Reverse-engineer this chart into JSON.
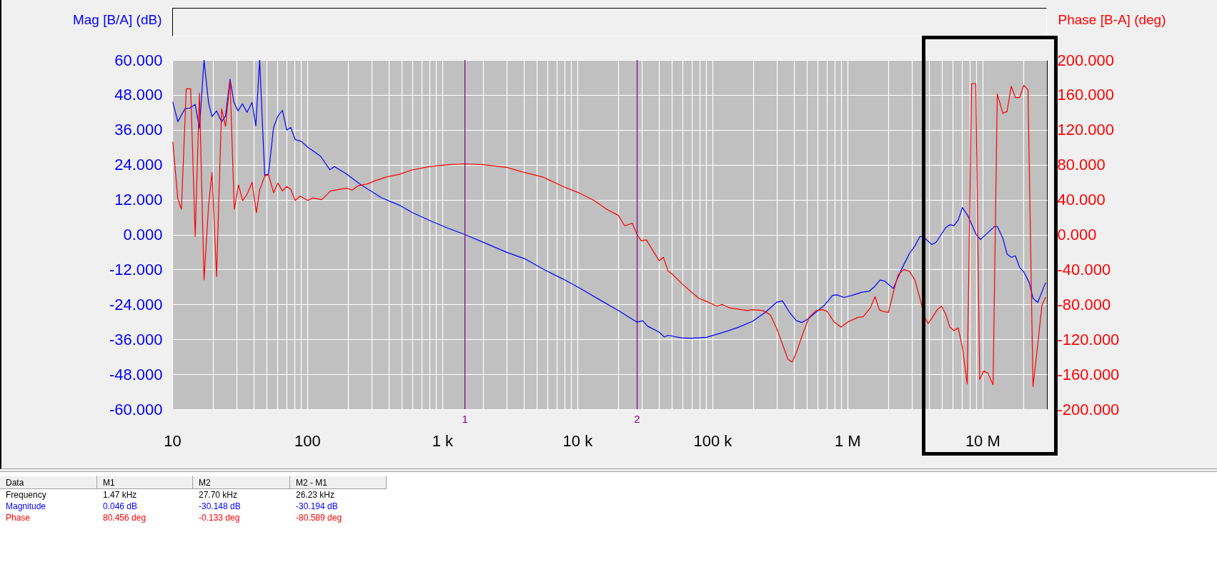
{
  "chart_data": {
    "type": "line",
    "ylabel": "Mag [B/A] (dB)",
    "y2label": "Phase [B-A] (deg)",
    "log": "x",
    "grid": true,
    "xlim": [
      10,
      30000000
    ],
    "xticks": [
      10,
      {
        "value": 20,
        "label": null
      },
      {
        "value": 30,
        "label": null
      },
      {
        "value": 40,
        "label": null
      },
      {
        "value": 50,
        "label": null
      },
      {
        "value": 60,
        "label": null
      },
      {
        "value": 70,
        "label": null
      },
      {
        "value": 80,
        "label": null
      },
      {
        "value": 90,
        "label": null
      },
      100,
      {
        "value": 200,
        "label": null
      },
      {
        "value": 300,
        "label": null
      },
      {
        "value": 400,
        "label": null
      },
      {
        "value": 500,
        "label": null
      },
      {
        "value": 600,
        "label": null
      },
      {
        "value": 700,
        "label": null
      },
      {
        "value": 800,
        "label": null
      },
      {
        "value": 900,
        "label": null
      },
      {
        "value": 1000,
        "label": "1 k"
      },
      {
        "value": 2000,
        "label": null
      },
      {
        "value": 3000,
        "label": null
      },
      {
        "value": 4000,
        "label": null
      },
      {
        "value": 5000,
        "label": null
      },
      {
        "value": 6000,
        "label": null
      },
      {
        "value": 7000,
        "label": null
      },
      {
        "value": 8000,
        "label": null
      },
      {
        "value": 9000,
        "label": null
      },
      {
        "value": 10000,
        "label": "10 k"
      },
      {
        "value": 20000,
        "label": null
      },
      {
        "value": 30000,
        "label": null
      },
      {
        "value": 40000,
        "label": null
      },
      {
        "value": 50000,
        "label": null
      },
      {
        "value": 60000,
        "label": null
      },
      {
        "value": 70000,
        "label": null
      },
      {
        "value": 80000,
        "label": null
      },
      {
        "value": 90000,
        "label": null
      },
      {
        "value": 100000,
        "label": "100 k"
      },
      {
        "value": 200000,
        "label": null
      },
      {
        "value": 300000,
        "label": null
      },
      {
        "value": 400000,
        "label": null
      },
      {
        "value": 500000,
        "label": null
      },
      {
        "value": 600000,
        "label": null
      },
      {
        "value": 700000,
        "label": null
      },
      {
        "value": 800000,
        "label": null
      },
      {
        "value": 900000,
        "label": null
      },
      {
        "value": 1000000,
        "label": "1 M"
      },
      {
        "value": 2000000,
        "label": null
      },
      {
        "value": 3000000,
        "label": null
      },
      {
        "value": 4000000,
        "label": null
      },
      {
        "value": 5000000,
        "label": null
      },
      {
        "value": 6000000,
        "label": null
      },
      {
        "value": 7000000,
        "label": null
      },
      {
        "value": 8000000,
        "label": null
      },
      {
        "value": 9000000,
        "label": null
      },
      {
        "value": 10000000,
        "label": "10 M"
      },
      {
        "value": 20000000,
        "label": null
      }
    ],
    "ylim": [
      -60,
      60
    ],
    "yticks": [
      {
        "value": -60,
        "label": "-60.000"
      },
      {
        "value": -48,
        "label": "-48.000"
      },
      {
        "value": -36,
        "label": "-36.000"
      },
      {
        "value": -24,
        "label": "-24.000"
      },
      {
        "value": -12,
        "label": "-12.000"
      },
      {
        "value": 0,
        "label": "0.000"
      },
      {
        "value": 12,
        "label": "12.000"
      },
      {
        "value": 24,
        "label": "24.000"
      },
      {
        "value": 36,
        "label": "36.000"
      },
      {
        "value": 48,
        "label": "48.000"
      },
      {
        "value": 60,
        "label": "60.000"
      }
    ],
    "y2lim": [
      -200,
      200
    ],
    "y2ticks": [
      {
        "value": -200,
        "label": "-200.000"
      },
      {
        "value": -160,
        "label": "-160.000"
      },
      {
        "value": -120,
        "label": "-120.000"
      },
      {
        "value": -80,
        "label": "-80.000"
      },
      {
        "value": -40,
        "label": "-40.000"
      },
      {
        "value": 0,
        "label": "0.000"
      },
      {
        "value": 40,
        "label": "40.000"
      },
      {
        "value": 80,
        "label": "80.000"
      },
      {
        "value": 120,
        "label": "120.000"
      },
      {
        "value": 160,
        "label": "160.000"
      },
      {
        "value": 200,
        "label": "200.000"
      }
    ],
    "series": [
      {
        "color": "#0000ff",
        "x": [
          10.1,
          11.0,
          12.4,
          13.5,
          14.8,
          15.9,
          17.2,
          18.6,
          19.7,
          21.3,
          23.2,
          24.8,
          26.8,
          28.6,
          30.7,
          33.1,
          35.8,
          39.0,
          41.6,
          44.4,
          48.4,
          51.6,
          56.3,
          60.6,
          65.5,
          70.5,
          75.5,
          81.3,
          90.5,
          101,
          125,
          147,
          159,
          193,
          250,
          353,
          480,
          597,
          811,
          1100,
          1470,
          2120,
          3000,
          4080,
          5540,
          7850,
          10700,
          14500,
          20500,
          24400,
          27700,
          30400,
          33200,
          40300,
          44000,
          47000,
          58500,
          69600,
          90500,
          118000,
          153000,
          198000,
          247000,
          300000,
          330000,
          372000,
          419000,
          461000,
          507000,
          584000,
          674000,
          777000,
          835000,
          940000,
          1084000,
          1281000,
          1443000,
          1587000,
          1745000,
          1874000,
          2183000,
          2493000,
          2875000,
          3162000,
          3445000,
          3648000,
          4207000,
          4519000,
          5338000,
          5732000,
          6155000,
          6611000,
          7100000,
          7807000,
          9006000,
          9672000,
          12270000,
          12870000,
          14150000,
          15200000,
          16330000,
          17530000,
          18830000,
          20220000,
          22240000,
          23660000,
          25660000,
          29310000
        ],
        "values": [
          45.5,
          38.8,
          43.2,
          43.5,
          44.7,
          36.5,
          60,
          45.1,
          40.6,
          42.5,
          38.8,
          40.7,
          53.4,
          45.5,
          42.5,
          44.9,
          42.0,
          45.4,
          37.4,
          60,
          20.4,
          20.8,
          36.8,
          40.7,
          42.7,
          35.9,
          36.8,
          32.7,
          32.0,
          30.0,
          27.0,
          22.3,
          23.4,
          21.0,
          17.1,
          12.7,
          10.1,
          7.6,
          4.8,
          2.2,
          0.0,
          -3.1,
          -6.1,
          -8.3,
          -11.8,
          -15.3,
          -18.7,
          -22.3,
          -26.3,
          -28.5,
          -30.1,
          -29.6,
          -31.5,
          -33.5,
          -35.2,
          -34.6,
          -35.5,
          -35.6,
          -35.3,
          -33.7,
          -32.0,
          -29.8,
          -26.7,
          -23.2,
          -22.8,
          -26.7,
          -29.6,
          -30.2,
          -29.1,
          -26.7,
          -24.3,
          -20.9,
          -20.7,
          -21.6,
          -20.9,
          -19.8,
          -19.5,
          -17.9,
          -15.6,
          -15.9,
          -18.5,
          -12.3,
          -6.5,
          -3.9,
          -0.6,
          -0.8,
          -3.4,
          -2.7,
          2.4,
          3.4,
          3.1,
          5.0,
          9.3,
          6.4,
          -0.1,
          -1.7,
          2.8,
          2.8,
          -1.2,
          -6.7,
          -7.8,
          -7.3,
          -11.3,
          -12.8,
          -16.6,
          -21.9,
          -23.3,
          -16.6
        ]
      },
      {
        "color": "#ff0000",
        "axis": "y2",
        "x": [
          10.1,
          11.0,
          11.7,
          12.7,
          13.7,
          14.8,
          15.9,
          17.2,
          18.6,
          19.7,
          21.3,
          23.2,
          24.8,
          26.8,
          28.8,
          31.0,
          33.2,
          35.8,
          39.0,
          42.0,
          44.4,
          48.4,
          51.6,
          56.3,
          60.6,
          65.5,
          70.5,
          75.5,
          81.3,
          88.6,
          101,
          110,
          128,
          149,
          177,
          197,
          215,
          239,
          278,
          310,
          385,
          480,
          597,
          811,
          1100,
          1470,
          2030,
          3000,
          4080,
          5540,
          7850,
          10200,
          13300,
          16500,
          20100,
          22400,
          25500,
          27700,
          29700,
          32400,
          40300,
          43400,
          47000,
          50200,
          61100,
          79300,
          88500,
          108000,
          118000,
          134000,
          182000,
          198000,
          236000,
          269000,
          300000,
          363000,
          390000,
          419000,
          461000,
          519000,
          584000,
          658000,
          707000,
          796000,
          896000,
          1010000,
          1192000,
          1312000,
          1477000,
          1602000,
          1720000,
          1830000,
          2012000,
          2213000,
          2377000,
          2615000,
          2875000,
          3162000,
          3478000,
          3735000,
          3955000,
          4207000,
          4627000,
          4969000,
          5338000,
          5732000,
          6155000,
          6611000,
          7100000,
          7700000,
          8306000,
          8920000,
          9535000,
          10240000,
          10990000,
          11980000,
          12870000,
          14150000,
          15200000,
          16330000,
          17530000,
          18830000,
          20220000,
          21720000,
          23660000,
          25660000,
          27550000,
          29310000
        ],
        "values": [
          106,
          41,
          29,
          167,
          167,
          -2,
          162,
          -52,
          34,
          71,
          -48,
          144,
          124,
          176,
          29,
          57,
          39,
          46,
          60,
          25,
          51,
          67,
          69,
          48,
          59,
          50,
          55,
          52,
          39,
          44,
          39,
          42,
          40,
          50,
          52,
          53,
          51,
          56,
          58,
          61,
          66,
          69,
          74,
          78,
          80,
          81,
          80,
          77,
          71,
          66,
          55,
          48,
          39,
          29,
          22,
          10,
          13,
          0,
          -7,
          -6,
          -30,
          -26,
          -42,
          -45,
          -58,
          -73,
          -76,
          -82,
          -80,
          -84,
          -87,
          -86,
          -87,
          -92,
          -108,
          -143,
          -146,
          -135,
          -116,
          -95,
          -87,
          -86,
          -88,
          -100,
          -106,
          -100,
          -95,
          -94,
          -84,
          -71,
          -86,
          -88,
          -89,
          -63,
          -46,
          -40,
          -42,
          -52,
          -76,
          -95,
          -102,
          -96,
          -86,
          -82,
          -91,
          -106,
          -110,
          -107,
          -129,
          -171,
          173,
          173,
          -166,
          -156,
          -159,
          -172,
          161,
          139,
          141,
          170,
          157,
          157,
          171,
          166,
          -174,
          -126,
          -81,
          -72
        ]
      }
    ],
    "ref_lines": [
      {
        "axis": "x",
        "value": 1470,
        "color": "#800080"
      },
      {
        "axis": "x",
        "value": 27700,
        "color": "#800080"
      }
    ],
    "annotations": [
      "1",
      "2",
      "Data",
      "M1",
      "M2",
      "M2 - M1",
      "Frequency",
      "1.47 kHz",
      "27.70 kHz",
      "26.23 kHz",
      "Magnitude",
      "0.046 dB",
      "-30.148 dB",
      "-30.194 dB",
      "Phase",
      "80.456 deg",
      "-0.133 deg",
      "-80.589 deg"
    ]
  }
}
